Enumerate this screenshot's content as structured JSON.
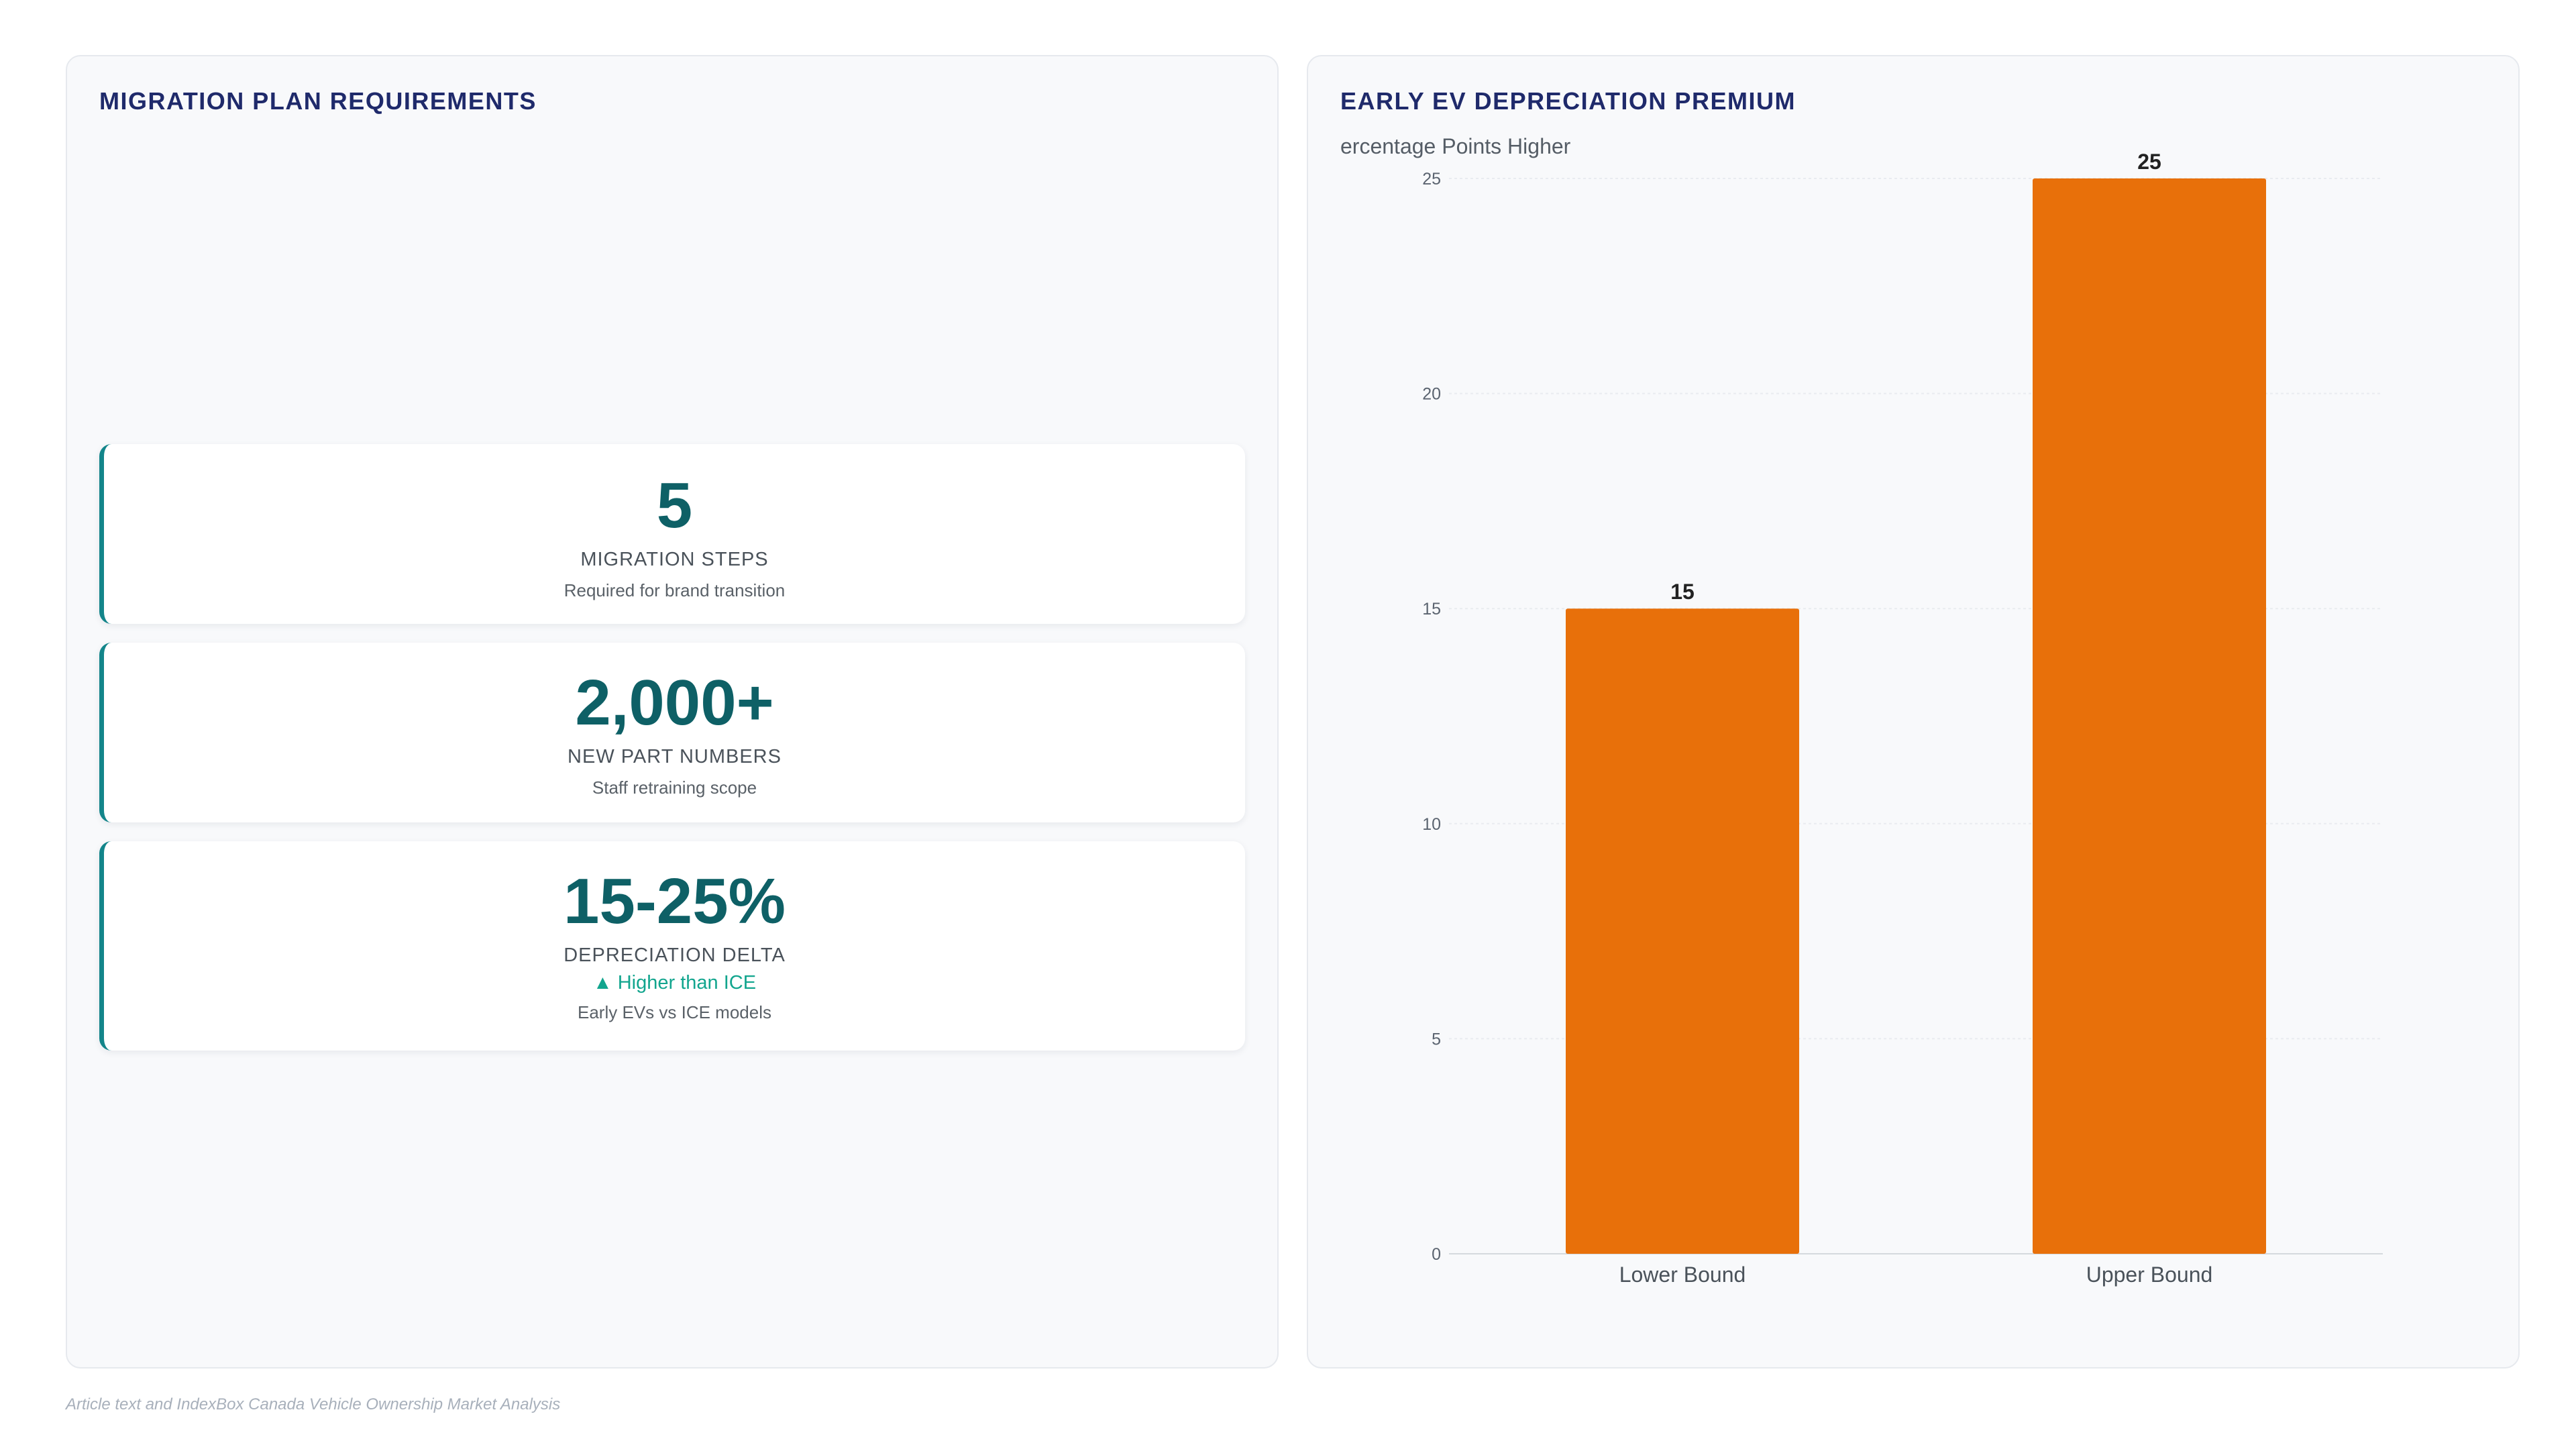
{
  "left_panel": {
    "title": "MIGRATION PLAN REQUIREMENTS",
    "cards": [
      {
        "value": "5",
        "label": "MIGRATION STEPS",
        "note": "Required for brand transition"
      },
      {
        "value": "2,000+",
        "label": "NEW PART NUMBERS",
        "note": "Staff retraining scope"
      },
      {
        "value": "15-25%",
        "label": "DEPRECIATION DELTA",
        "trend": "▲ Higher than ICE",
        "note": "Early EVs vs ICE models"
      }
    ]
  },
  "right_panel": {
    "title": "EARLY EV DEPRECIATION PREMIUM"
  },
  "chart_data": {
    "type": "bar",
    "title": "EARLY EV DEPRECIATION PREMIUM",
    "ylabel": "ercentage Points Higher",
    "categories": [
      "Lower Bound",
      "Upper Bound"
    ],
    "values": [
      15,
      25
    ],
    "ylim": [
      0,
      25
    ],
    "yticks": [
      0,
      5,
      10,
      15,
      20,
      25
    ],
    "bar_color": "#e8700a",
    "grid": true,
    "legend": "none"
  },
  "source": "Article text and IndexBox Canada Vehicle Ownership Market Analysis",
  "colors": {
    "title": "#1f2a6b",
    "kpi_value": "#0e6066",
    "card_accent": "#13858a",
    "trend_up": "#12a58e"
  }
}
